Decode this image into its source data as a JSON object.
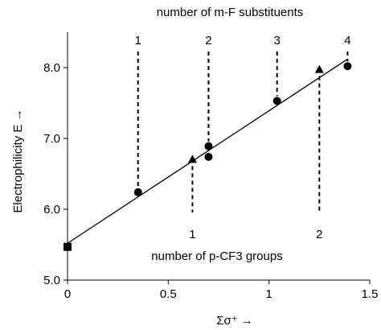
{
  "chart_data": {
    "type": "scatter",
    "xlabel": "Σσ⁺ →",
    "ylabel": "Electrophilicity E →",
    "xlim": [
      0,
      1.5
    ],
    "ylim": [
      5.0,
      8.5
    ],
    "xticks": [
      "0",
      "0.5",
      "1",
      "1.5"
    ],
    "xtick_values": [
      0,
      0.5,
      1,
      1.5
    ],
    "yticks": [
      "5.0",
      "6.0",
      "7.0",
      "8.0"
    ],
    "ytick_values": [
      5.0,
      6.0,
      7.0,
      8.0
    ],
    "grid": false,
    "series": [
      {
        "marker": "square",
        "points": [
          {
            "x": 0.0,
            "y": 5.47
          }
        ]
      },
      {
        "marker": "circle",
        "points": [
          {
            "x": 0.35,
            "y": 6.24
          },
          {
            "x": 0.7,
            "y": 6.89
          },
          {
            "x": 0.7,
            "y": 6.74
          },
          {
            "x": 1.04,
            "y": 7.53
          },
          {
            "x": 1.39,
            "y": 8.02
          }
        ]
      },
      {
        "marker": "triangle",
        "points": [
          {
            "x": 0.62,
            "y": 6.7
          },
          {
            "x": 1.25,
            "y": 7.97
          }
        ]
      }
    ],
    "fit_line": {
      "x": [
        0.0,
        1.39
      ],
      "y": [
        5.52,
        8.12
      ]
    },
    "top_annotation": {
      "title": "number of m-F substituents",
      "labels": [
        {
          "text": "1",
          "x": 0.35,
          "y_from": 6.24
        },
        {
          "text": "2",
          "x": 0.7,
          "y_from": 6.89
        },
        {
          "text": "3",
          "x": 1.04,
          "y_from": 7.53
        },
        {
          "text": "4",
          "x": 1.39,
          "y_from": 8.02
        }
      ]
    },
    "bottom_annotation": {
      "title": "number of p-CF3 groups",
      "labels": [
        {
          "text": "1",
          "x": 0.62,
          "y_from": 6.7
        },
        {
          "text": "2",
          "x": 1.25,
          "y_from": 7.97
        }
      ]
    }
  }
}
